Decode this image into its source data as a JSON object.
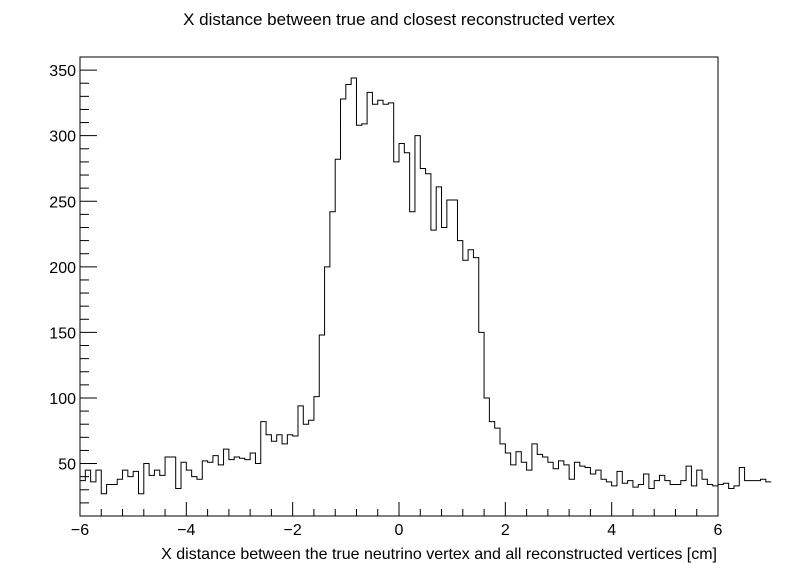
{
  "chart_data": {
    "type": "bar",
    "title": "X distance between true and closest reconstructed vertex",
    "xlabel": "X distance between the true neutrino vertex and all reconstructed vertices [cm]",
    "ylabel": "",
    "xlim": [
      -6,
      6
    ],
    "ylim": [
      10,
      360
    ],
    "grid": false,
    "x_ticks": [
      "−6",
      "−4",
      "−2",
      "0",
      "2",
      "4",
      "6"
    ],
    "y_ticks": [
      "50",
      "100",
      "150",
      "200",
      "250",
      "300",
      "350"
    ],
    "bin_width": 0.1,
    "values": [
      37,
      45,
      36,
      45,
      27,
      34,
      34,
      38,
      45,
      40,
      44,
      27,
      50,
      41,
      45,
      41,
      55,
      55,
      31,
      51,
      45,
      40,
      38,
      52,
      51,
      56,
      49,
      61,
      53,
      55,
      54,
      53,
      58,
      50,
      82,
      72,
      67,
      72,
      65,
      72,
      71,
      94,
      80,
      83,
      101,
      148,
      200,
      242,
      282,
      328,
      339,
      344,
      308,
      309,
      333,
      324,
      327,
      324,
      325,
      280,
      294,
      287,
      242,
      300,
      275,
      271,
      228,
      261,
      230,
      251,
      251,
      220,
      205,
      213,
      207,
      150,
      100,
      82,
      77,
      65,
      58,
      49,
      59,
      51,
      45,
      65,
      57,
      55,
      51,
      46,
      52,
      49,
      38,
      51,
      48,
      47,
      42,
      45,
      38,
      36,
      33,
      44,
      35,
      37,
      32,
      34,
      42,
      31,
      37,
      41,
      37,
      34,
      34,
      37,
      48,
      33,
      45,
      38,
      34,
      33,
      34,
      35,
      31,
      33,
      47,
      37,
      37,
      37,
      38,
      36
    ]
  }
}
